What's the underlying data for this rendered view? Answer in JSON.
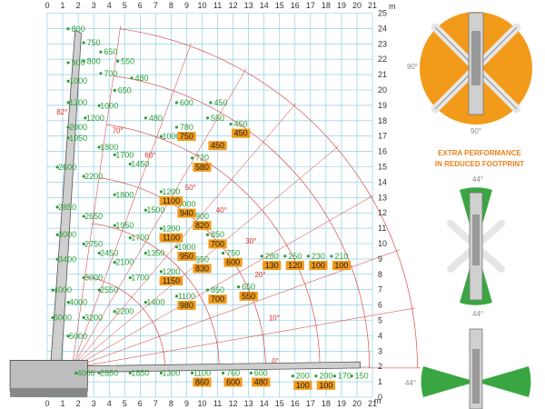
{
  "unit": "m",
  "x_ticks": [
    "0",
    "1",
    "2",
    "3",
    "4",
    "5",
    "6",
    "7",
    "8",
    "9",
    "10",
    "11",
    "12",
    "13",
    "14",
    "15",
    "16",
    "17",
    "18",
    "19",
    "20",
    "21"
  ],
  "y_ticks": [
    "0",
    "1",
    "2",
    "3",
    "4",
    "5",
    "6",
    "7",
    "8",
    "9",
    "10",
    "11",
    "12",
    "13",
    "14",
    "15",
    "16",
    "17",
    "18",
    "19",
    "20",
    "21",
    "22",
    "23",
    "24",
    "25"
  ],
  "angles": [
    {
      "text": "82°",
      "x": 0.6,
      "y": 18.4
    },
    {
      "text": "70°",
      "x": 4.2,
      "y": 17.2
    },
    {
      "text": "60°",
      "x": 6.3,
      "y": 15.6
    },
    {
      "text": "50°",
      "x": 8.9,
      "y": 13.5
    },
    {
      "text": "40°",
      "x": 10.9,
      "y": 12.0
    },
    {
      "text": "30°",
      "x": 12.8,
      "y": 10.0
    },
    {
      "text": "20°",
      "x": 13.4,
      "y": 7.8
    },
    {
      "text": "10°",
      "x": 14.3,
      "y": 5.0
    },
    {
      "text": "0°",
      "x": 14.5,
      "y": 2.2
    }
  ],
  "green_labels": [
    {
      "text": "800",
      "x": 2.0,
      "y": 23.8
    },
    {
      "text": "750",
      "x": 3.0,
      "y": 22.9
    },
    {
      "text": "650",
      "x": 4.1,
      "y": 22.3
    },
    {
      "text": "550",
      "x": 5.2,
      "y": 21.7
    },
    {
      "text": "900",
      "x": 2.0,
      "y": 21.6
    },
    {
      "text": "800",
      "x": 3.0,
      "y": 21.7
    },
    {
      "text": "700",
      "x": 4.1,
      "y": 20.9
    },
    {
      "text": "480",
      "x": 6.1,
      "y": 20.6
    },
    {
      "text": "1000",
      "x": 2.0,
      "y": 20.4
    },
    {
      "text": "650",
      "x": 5.0,
      "y": 19.8
    },
    {
      "text": "1200",
      "x": 2.0,
      "y": 19.0
    },
    {
      "text": "1000",
      "x": 4.0,
      "y": 18.8
    },
    {
      "text": "1200",
      "x": 3.1,
      "y": 18.0
    },
    {
      "text": "480",
      "x": 7.0,
      "y": 18.0
    },
    {
      "text": "600",
      "x": 9.0,
      "y": 19.0
    },
    {
      "text": "450",
      "x": 11.2,
      "y": 19.0
    },
    {
      "text": "550",
      "x": 11.0,
      "y": 18.0
    },
    {
      "text": "450",
      "x": 12.5,
      "y": 17.6
    },
    {
      "text": "2000",
      "x": 2.0,
      "y": 17.4
    },
    {
      "text": "1950",
      "x": 2.0,
      "y": 16.7
    },
    {
      "text": "780",
      "x": 9.0,
      "y": 17.4
    },
    {
      "text": "1000",
      "x": 8.0,
      "y": 16.8
    },
    {
      "text": "1800",
      "x": 4.0,
      "y": 16.1
    },
    {
      "text": "1700",
      "x": 5.0,
      "y": 15.6
    },
    {
      "text": "720",
      "x": 10.0,
      "y": 15.4
    },
    {
      "text": "1450",
      "x": 6.0,
      "y": 15.0
    },
    {
      "text": "2600",
      "x": 1.3,
      "y": 14.8
    },
    {
      "text": "2200",
      "x": 3.0,
      "y": 14.2
    },
    {
      "text": "1200",
      "x": 8.0,
      "y": 13.2
    },
    {
      "text": "1800",
      "x": 5.0,
      "y": 13.0
    },
    {
      "text": "1000",
      "x": 9.0,
      "y": 12.4
    },
    {
      "text": "2850",
      "x": 1.3,
      "y": 12.2
    },
    {
      "text": "1500",
      "x": 7.0,
      "y": 12.0
    },
    {
      "text": "2650",
      "x": 3.0,
      "y": 11.6
    },
    {
      "text": "900",
      "x": 10.0,
      "y": 11.6
    },
    {
      "text": "1950",
      "x": 5.0,
      "y": 11.0
    },
    {
      "text": "1200",
      "x": 8.0,
      "y": 10.8
    },
    {
      "text": "3000",
      "x": 1.3,
      "y": 10.4
    },
    {
      "text": "850",
      "x": 11.0,
      "y": 10.4
    },
    {
      "text": "1700",
      "x": 6.0,
      "y": 10.2
    },
    {
      "text": "1000",
      "x": 9.0,
      "y": 9.6
    },
    {
      "text": "2750",
      "x": 3.0,
      "y": 9.8
    },
    {
      "text": "2450",
      "x": 4.0,
      "y": 9.2
    },
    {
      "text": "1350",
      "x": 7.0,
      "y": 9.2
    },
    {
      "text": "750",
      "x": 12.0,
      "y": 9.2
    },
    {
      "text": "280",
      "x": 14.5,
      "y": 9.0
    },
    {
      "text": "250",
      "x": 16.0,
      "y": 9.0
    },
    {
      "text": "230",
      "x": 17.5,
      "y": 9.0
    },
    {
      "text": "210",
      "x": 19.0,
      "y": 9.0
    },
    {
      "text": "3400",
      "x": 1.3,
      "y": 8.8
    },
    {
      "text": "2100",
      "x": 5.0,
      "y": 8.6
    },
    {
      "text": "950",
      "x": 10.0,
      "y": 8.8
    },
    {
      "text": "1200",
      "x": 8.0,
      "y": 8.0
    },
    {
      "text": "3000",
      "x": 3.0,
      "y": 7.6
    },
    {
      "text": "1700",
      "x": 6.0,
      "y": 7.6
    },
    {
      "text": "4000",
      "x": 1.0,
      "y": 6.8
    },
    {
      "text": "2550",
      "x": 4.0,
      "y": 6.8
    },
    {
      "text": "650",
      "x": 13.0,
      "y": 7.0
    },
    {
      "text": "850",
      "x": 11.0,
      "y": 6.8
    },
    {
      "text": "1100",
      "x": 9.0,
      "y": 6.4
    },
    {
      "text": "4000",
      "x": 2.0,
      "y": 6.0
    },
    {
      "text": "1400",
      "x": 7.0,
      "y": 6.0
    },
    {
      "text": "2200",
      "x": 5.0,
      "y": 5.4
    },
    {
      "text": "5000",
      "x": 1.0,
      "y": 5.0
    },
    {
      "text": "3200",
      "x": 3.0,
      "y": 5.0
    },
    {
      "text": "5000",
      "x": 2.0,
      "y": 3.8
    },
    {
      "text": "4000",
      "x": 2.5,
      "y": 1.4
    },
    {
      "text": "2850",
      "x": 4.0,
      "y": 1.4
    },
    {
      "text": "1850",
      "x": 6.0,
      "y": 1.4
    },
    {
      "text": "1300",
      "x": 8.0,
      "y": 1.4
    },
    {
      "text": "1100",
      "x": 10.0,
      "y": 1.4
    },
    {
      "text": "760",
      "x": 12.0,
      "y": 1.4
    },
    {
      "text": "600",
      "x": 13.8,
      "y": 1.4
    },
    {
      "text": "200",
      "x": 16.5,
      "y": 1.2
    },
    {
      "text": "200",
      "x": 18.0,
      "y": 1.2
    },
    {
      "text": "170",
      "x": 19.2,
      "y": 1.2
    },
    {
      "text": "150",
      "x": 20.3,
      "y": 1.2
    }
  ],
  "orange_labels": [
    {
      "text": "750",
      "x": 9.0,
      "y": 16.8
    },
    {
      "text": "450",
      "x": 11.0,
      "y": 16.2
    },
    {
      "text": "450",
      "x": 12.5,
      "y": 17.0
    },
    {
      "text": "580",
      "x": 10.0,
      "y": 14.8
    },
    {
      "text": "1100",
      "x": 8.0,
      "y": 12.6
    },
    {
      "text": "940",
      "x": 9.0,
      "y": 11.8
    },
    {
      "text": "820",
      "x": 10.0,
      "y": 11.0
    },
    {
      "text": "1100",
      "x": 8.0,
      "y": 10.2
    },
    {
      "text": "700",
      "x": 11.0,
      "y": 9.8
    },
    {
      "text": "950",
      "x": 9.0,
      "y": 9.0
    },
    {
      "text": "600",
      "x": 12.0,
      "y": 8.6
    },
    {
      "text": "130",
      "x": 14.5,
      "y": 8.4
    },
    {
      "text": "120",
      "x": 16.0,
      "y": 8.4
    },
    {
      "text": "100",
      "x": 17.5,
      "y": 8.4
    },
    {
      "text": "100",
      "x": 19.0,
      "y": 8.4
    },
    {
      "text": "830",
      "x": 10.0,
      "y": 8.2
    },
    {
      "text": "1150",
      "x": 8.0,
      "y": 7.4
    },
    {
      "text": "700",
      "x": 11.0,
      "y": 6.2
    },
    {
      "text": "550",
      "x": 13.0,
      "y": 6.4
    },
    {
      "text": "980",
      "x": 9.0,
      "y": 5.8
    },
    {
      "text": "860",
      "x": 10.0,
      "y": 0.8
    },
    {
      "text": "600",
      "x": 12.0,
      "y": 0.8
    },
    {
      "text": "480",
      "x": 13.8,
      "y": 0.8
    },
    {
      "text": "100",
      "x": 16.5,
      "y": 0.6
    },
    {
      "text": "100",
      "x": 18.0,
      "y": 0.6
    }
  ],
  "right_panel": {
    "top_angle_left": "90°",
    "top_angle_bottom": "90°",
    "headline_1": "EXTRA PERFORMANCE",
    "headline_2": "IN REDUCED FOOTPRINT",
    "mid_angle_top": "44°",
    "mid_angle_bottom": "44°",
    "bot_angle_left": "44°"
  },
  "colors": {
    "green": "#2e9e3a",
    "orange": "#f09a1a",
    "grid": "#7fc8e0",
    "red": "#d9302a"
  }
}
